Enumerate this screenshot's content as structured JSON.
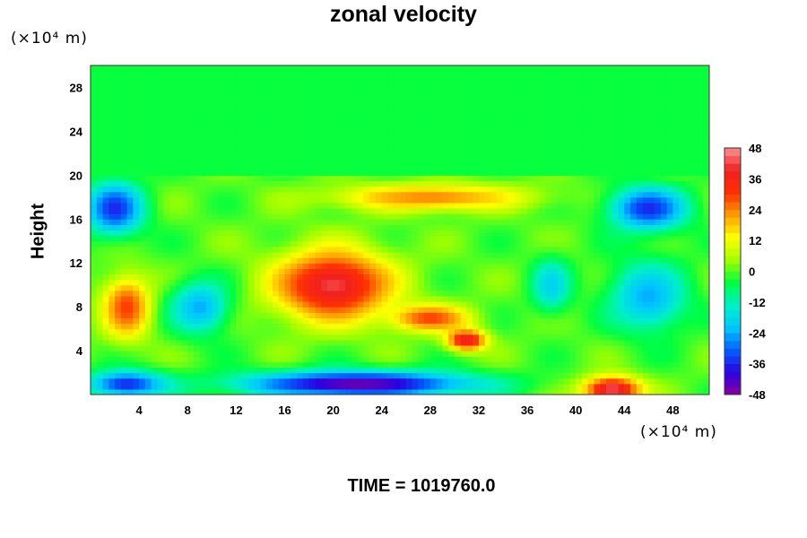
{
  "chart_data": {
    "type": "heatmap",
    "title": "zonal velocity",
    "ylabel": "Height",
    "xlabel": "",
    "x_unit_label": "(×10⁴ m)",
    "y_unit_label": "(×10⁴ m)",
    "xlim": [
      0,
      51
    ],
    "ylim": [
      0,
      30
    ],
    "x_ticks": [
      "4",
      "8",
      "12",
      "16",
      "20",
      "24",
      "28",
      "32",
      "36",
      "40",
      "44",
      "48"
    ],
    "y_ticks": [
      "4",
      "8",
      "12",
      "16",
      "20",
      "24",
      "28"
    ],
    "colorbar": {
      "min": -48,
      "max": 48,
      "ticks": [
        "48",
        "36",
        "24",
        "12",
        "0",
        "-12",
        "-24",
        "-36",
        "-48"
      ],
      "colors": [
        "#8b00a0",
        "#2c00e0",
        "#0060ff",
        "#00c8ff",
        "#00f0c8",
        "#00ff40",
        "#a0ff00",
        "#ffff00",
        "#ffa000",
        "#ff3000",
        "#f02020",
        "#ff9090"
      ]
    },
    "background_value": 0,
    "features": [
      {
        "desc": "upper layer uniform",
        "x0": 0,
        "x1": 51,
        "y0": 20,
        "y1": 30,
        "value": -4
      },
      {
        "desc": "strong positive core",
        "x": 20,
        "y": 10,
        "rx": 6,
        "ry": 4,
        "value": 42
      },
      {
        "desc": "positive streak",
        "x": 28,
        "y": 7,
        "rx": 4,
        "ry": 1.5,
        "value": 30
      },
      {
        "desc": "positive patch",
        "x": 31,
        "y": 5,
        "rx": 2,
        "ry": 1.2,
        "value": 40
      },
      {
        "desc": "left positive",
        "x": 3,
        "y": 8,
        "rx": 2.5,
        "ry": 3.5,
        "value": 30
      },
      {
        "desc": "upper band positive",
        "x": 28,
        "y": 18,
        "rx": 10,
        "ry": 1.5,
        "value": 24
      },
      {
        "desc": "bottom negative band",
        "x": 22,
        "y": 1,
        "rx": 12,
        "ry": 1.5,
        "value": -46
      },
      {
        "desc": "bottom left negative",
        "x": 3,
        "y": 1,
        "rx": 4,
        "ry": 1.5,
        "value": -36
      },
      {
        "desc": "bottom right positive",
        "x": 43,
        "y": 0.5,
        "rx": 3,
        "ry": 1.5,
        "value": 44
      },
      {
        "desc": "upper left negative",
        "x": 2,
        "y": 17,
        "rx": 3,
        "ry": 3,
        "value": -36
      },
      {
        "desc": "upper right negative",
        "x": 46,
        "y": 17,
        "rx": 4,
        "ry": 2.5,
        "value": -36
      },
      {
        "desc": "mid negative",
        "x": 9,
        "y": 8,
        "rx": 3,
        "ry": 3,
        "value": -24
      },
      {
        "desc": "right negative",
        "x": 46,
        "y": 9,
        "rx": 4,
        "ry": 4,
        "value": -24
      },
      {
        "desc": "center right negative",
        "x": 38,
        "y": 10,
        "rx": 2,
        "ry": 3,
        "value": -20
      }
    ],
    "time_label": "TIME = 1019760.0"
  }
}
